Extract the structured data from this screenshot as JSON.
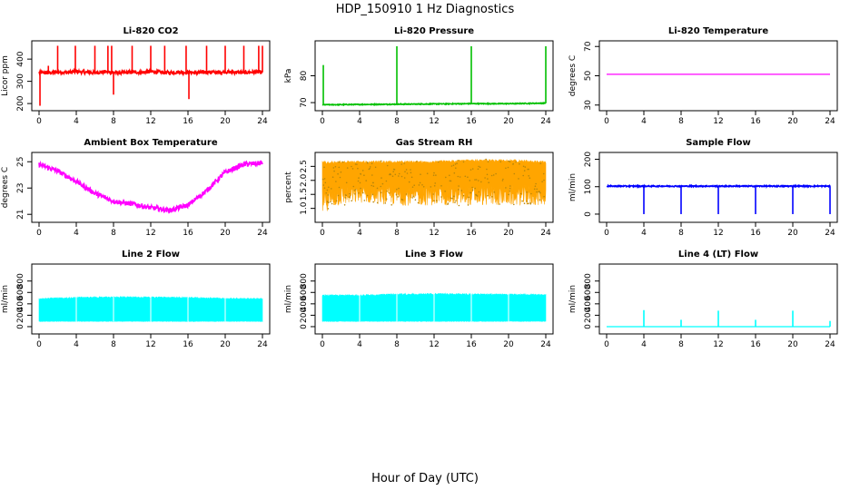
{
  "figure": {
    "suptitle": "HDP_150910  1 Hz Diagnostics",
    "xlabel": "Hour of Day (UTC)"
  },
  "chart_data": [
    {
      "title": "Li-820 CO2",
      "type": "line",
      "ylabel": "Licor ppm",
      "color": "#ff0000",
      "xlim": [
        0,
        24
      ],
      "xticks": [
        0,
        4,
        8,
        12,
        16,
        20,
        24
      ],
      "ylim": [
        180,
        470
      ],
      "yticks": [
        200,
        300,
        400
      ],
      "baseline": [
        [
          0,
          340
        ],
        [
          1,
          338
        ],
        [
          2,
          342
        ],
        [
          3,
          340
        ],
        [
          4,
          344
        ],
        [
          5,
          341
        ],
        [
          6,
          339
        ],
        [
          7,
          343
        ],
        [
          8,
          340
        ],
        [
          9,
          338
        ],
        [
          10,
          342
        ],
        [
          11,
          340
        ],
        [
          12,
          344
        ],
        [
          13,
          341
        ],
        [
          14,
          339
        ],
        [
          15,
          342
        ],
        [
          16,
          340
        ],
        [
          17,
          338
        ],
        [
          18,
          342
        ],
        [
          19,
          340
        ],
        [
          20,
          343
        ],
        [
          21,
          341
        ],
        [
          22,
          339
        ],
        [
          23,
          342
        ],
        [
          24,
          340
        ]
      ],
      "noise": 8,
      "spikes": [
        [
          0.1,
          190
        ],
        [
          1,
          370
        ],
        [
          2,
          460
        ],
        [
          3.9,
          460
        ],
        [
          6,
          460
        ],
        [
          7.4,
          460
        ],
        [
          7.8,
          460
        ],
        [
          8,
          240
        ],
        [
          10,
          460
        ],
        [
          12,
          460
        ],
        [
          13.5,
          460
        ],
        [
          15.8,
          460
        ],
        [
          16.1,
          220
        ],
        [
          18,
          460
        ],
        [
          20,
          460
        ],
        [
          22,
          460
        ],
        [
          23.6,
          460
        ],
        [
          24,
          460
        ]
      ]
    },
    {
      "title": "Li-820 Pressure",
      "type": "line",
      "ylabel": "kPa",
      "color": "#00c000",
      "xlim": [
        0,
        24
      ],
      "xticks": [
        0,
        4,
        8,
        12,
        16,
        20,
        24
      ],
      "ylim": [
        68,
        92
      ],
      "yticks": [
        70,
        80
      ],
      "baseline": [
        [
          0,
          69.2
        ],
        [
          4,
          69.3
        ],
        [
          8,
          69.4
        ],
        [
          12,
          69.5
        ],
        [
          16,
          69.6
        ],
        [
          20,
          69.6
        ],
        [
          24,
          69.8
        ]
      ],
      "noise": 0.15,
      "spikes": [
        [
          0.1,
          84
        ],
        [
          8,
          91
        ],
        [
          16,
          91
        ],
        [
          24,
          91
        ]
      ]
    },
    {
      "title": "Li-820 Temperature",
      "type": "line",
      "ylabel": "degrees C",
      "color": "#ff00ff",
      "xlim": [
        0,
        24
      ],
      "xticks": [
        0,
        4,
        8,
        12,
        16,
        20,
        24
      ],
      "ylim": [
        28,
        72
      ],
      "yticks": [
        30,
        50,
        70
      ],
      "baseline": [
        [
          0,
          51
        ],
        [
          24,
          51
        ]
      ],
      "noise": 0,
      "spikes": []
    },
    {
      "title": "Ambient Box Temperature",
      "type": "line",
      "ylabel": "degrees C",
      "color": "#ff00ff",
      "xlim": [
        0,
        24
      ],
      "xticks": [
        0,
        4,
        8,
        12,
        16,
        20,
        24
      ],
      "ylim": [
        20.6,
        25.5
      ],
      "yticks": [
        21,
        23,
        25
      ],
      "baseline": [
        [
          0,
          24.8
        ],
        [
          2,
          24.3
        ],
        [
          4,
          23.5
        ],
        [
          6,
          22.6
        ],
        [
          8,
          22.0
        ],
        [
          10,
          21.8
        ],
        [
          12,
          21.5
        ],
        [
          14,
          21.3
        ],
        [
          16,
          21.7
        ],
        [
          18,
          22.8
        ],
        [
          20,
          24.2
        ],
        [
          22,
          24.8
        ],
        [
          24,
          24.9
        ]
      ],
      "noise": 0.18,
      "spikes": []
    },
    {
      "title": "Gas Stream RH",
      "type": "line",
      "ylabel": "percent",
      "color": "#ffa500",
      "xlim": [
        0,
        24
      ],
      "xticks": [
        0,
        4,
        8,
        12,
        16,
        20,
        24
      ],
      "ylim": [
        0.6,
        2.9
      ],
      "yticks": [
        1.0,
        1.5,
        2.0,
        2.5
      ],
      "baseline": [
        [
          0,
          2.0
        ],
        [
          24,
          2.0
        ]
      ],
      "noise": 0,
      "band": [
        [
          0,
          0.8,
          2.7
        ],
        [
          1,
          1.0,
          2.7
        ],
        [
          2,
          1.1,
          2.7
        ],
        [
          4,
          1.2,
          2.7
        ],
        [
          8,
          1.1,
          2.7
        ],
        [
          12,
          1.1,
          2.7
        ],
        [
          16,
          1.1,
          2.75
        ],
        [
          20,
          1.1,
          2.75
        ],
        [
          24,
          1.1,
          2.7
        ]
      ],
      "spikes": []
    },
    {
      "title": "Sample Flow",
      "type": "line",
      "ylabel": "ml/min",
      "color": "#0000ff",
      "xlim": [
        0,
        24
      ],
      "xticks": [
        0,
        4,
        8,
        12,
        16,
        20,
        24
      ],
      "ylim": [
        -20,
        215
      ],
      "yticks": [
        0,
        100,
        200
      ],
      "baseline": [
        [
          0,
          102
        ],
        [
          24,
          102
        ]
      ],
      "noise": 2,
      "spikes": [
        [
          4,
          0
        ],
        [
          8,
          0
        ],
        [
          12,
          0
        ],
        [
          16,
          0
        ],
        [
          20,
          0
        ],
        [
          24,
          0
        ]
      ]
    },
    {
      "title": "Line 2 Flow",
      "type": "line",
      "ylabel": "ml/min",
      "color": "#00ffff",
      "xlim": [
        0,
        24
      ],
      "xticks": [
        0,
        4,
        8,
        12,
        16,
        20,
        24
      ],
      "ylim": [
        -80,
        1050
      ],
      "yticks": [
        0,
        200,
        400,
        600,
        800
      ],
      "baseline": [
        [
          0,
          300
        ],
        [
          24,
          300
        ]
      ],
      "noise": 0,
      "band": [
        [
          0,
          90,
          500
        ],
        [
          4,
          90,
          520
        ],
        [
          8,
          90,
          530
        ],
        [
          12,
          90,
          525
        ],
        [
          16,
          90,
          520
        ],
        [
          20,
          90,
          505
        ],
        [
          24,
          90,
          500
        ]
      ],
      "spikes": []
    },
    {
      "title": "Line 3 Flow",
      "type": "line",
      "ylabel": "ml/min",
      "color": "#00ffff",
      "xlim": [
        0,
        24
      ],
      "xticks": [
        0,
        4,
        8,
        12,
        16,
        20,
        24
      ],
      "ylim": [
        -80,
        1050
      ],
      "yticks": [
        0,
        200,
        400,
        600,
        800
      ],
      "baseline": [
        [
          0,
          350
        ],
        [
          24,
          350
        ]
      ],
      "noise": 0,
      "band": [
        [
          0,
          90,
          560
        ],
        [
          4,
          90,
          560
        ],
        [
          8,
          90,
          580
        ],
        [
          12,
          90,
          585
        ],
        [
          16,
          90,
          580
        ],
        [
          20,
          90,
          575
        ],
        [
          24,
          90,
          570
        ]
      ],
      "spikes": []
    },
    {
      "title": "Line 4 (LT) Flow",
      "type": "line",
      "ylabel": "ml/min",
      "color": "#00ffff",
      "xlim": [
        0,
        24
      ],
      "xticks": [
        0,
        4,
        8,
        12,
        16,
        20,
        24
      ],
      "ylim": [
        -80,
        1050
      ],
      "yticks": [
        0,
        200,
        400,
        600,
        800
      ],
      "baseline": [
        [
          0,
          0
        ],
        [
          24,
          0
        ]
      ],
      "noise": 0,
      "spikes": [
        [
          4,
          290
        ],
        [
          8,
          120
        ],
        [
          12,
          280
        ],
        [
          16,
          120
        ],
        [
          20,
          280
        ],
        [
          24,
          100
        ]
      ]
    }
  ]
}
